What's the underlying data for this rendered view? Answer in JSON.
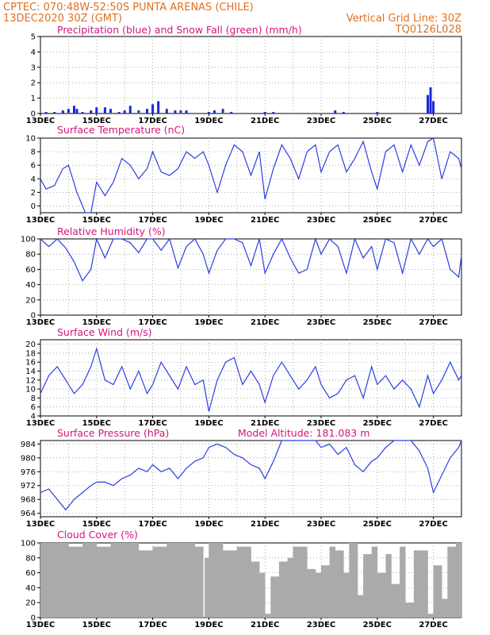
{
  "header": {
    "station_line": "CPTEC:   070:48W-52:50S   PUNTA ARENAS (CHILE)",
    "run_time": "13DEC2020 30Z (GMT)",
    "grid_note": "Vertical Grid Line: 30Z",
    "model": "TQ0126L028"
  },
  "x_axis": {
    "date_labels": [
      "13DEC",
      "15DEC",
      "17DEC",
      "19DEC",
      "21DEC",
      "23DEC",
      "25DEC",
      "27DEC"
    ],
    "start_day": 13,
    "end_day": 28
  },
  "colors": {
    "title": "#d4147e",
    "header": "#e07020",
    "line": "#2b3fe0",
    "precip_bar": "#1a2ad8",
    "snow": "#22aa22",
    "cloud": "#aaaaaa",
    "grid": "#999999"
  },
  "chart_data": [
    {
      "id": "precip",
      "type": "bar",
      "title": "Precipitation (blue) and Snow Fall (green) (mm/h)",
      "yticks": [
        0,
        1,
        2,
        3,
        4,
        5
      ],
      "ylim": [
        0,
        5
      ],
      "series": [
        {
          "name": "Precipitation",
          "x": [
            13.2,
            13.5,
            13.8,
            14.0,
            14.2,
            14.3,
            14.5,
            14.8,
            15.0,
            15.3,
            15.5,
            15.8,
            16.0,
            16.2,
            16.5,
            16.8,
            17.0,
            17.2,
            17.5,
            17.8,
            18.0,
            18.2,
            19.0,
            19.2,
            19.5,
            19.8,
            21.0,
            21.3,
            23.5,
            23.8,
            25.0,
            26.8,
            26.9,
            27.0
          ],
          "values": [
            0.1,
            0.1,
            0.2,
            0.3,
            0.5,
            0.3,
            0.1,
            0.2,
            0.4,
            0.4,
            0.3,
            0.1,
            0.2,
            0.5,
            0.2,
            0.3,
            0.6,
            0.8,
            0.3,
            0.2,
            0.2,
            0.2,
            0.1,
            0.2,
            0.3,
            0.1,
            0.1,
            0.1,
            0.2,
            0.1,
            0.1,
            1.2,
            1.7,
            0.8
          ]
        },
        {
          "name": "Snow Fall",
          "x": [
            14.0,
            15.5,
            16.5,
            18.0,
            19.5,
            21.5,
            22.5,
            24.5,
            26.0
          ],
          "values": [
            0.05,
            0.05,
            0.05,
            0.05,
            0.05,
            0.05,
            0.05,
            0.05,
            0.05
          ]
        }
      ]
    },
    {
      "id": "temperature",
      "type": "line",
      "title": "Surface Temperature (nC)",
      "yticks": [
        0,
        2,
        4,
        6,
        8,
        10
      ],
      "ylim": [
        -1,
        10
      ],
      "x": [
        13.0,
        13.2,
        13.5,
        13.8,
        14.0,
        14.3,
        14.6,
        14.8,
        15.0,
        15.3,
        15.6,
        15.9,
        16.2,
        16.5,
        16.8,
        17.0,
        17.3,
        17.6,
        17.9,
        18.2,
        18.5,
        18.8,
        19.0,
        19.3,
        19.6,
        19.9,
        20.2,
        20.5,
        20.8,
        21.0,
        21.3,
        21.6,
        21.9,
        22.2,
        22.5,
        22.8,
        23.0,
        23.3,
        23.6,
        23.9,
        24.2,
        24.5,
        24.8,
        25.0,
        25.3,
        25.6,
        25.9,
        26.2,
        26.5,
        26.8,
        27.0,
        27.3,
        27.6,
        27.9,
        28.0
      ],
      "values": [
        4,
        2.5,
        3,
        5.5,
        6,
        2,
        -1.5,
        -1,
        3.5,
        1.5,
        3.5,
        7,
        6,
        4,
        5.5,
        8,
        5,
        4.5,
        5.5,
        8,
        7,
        8,
        6,
        2,
        6,
        9,
        8,
        4.5,
        8,
        1,
        5.5,
        9,
        7,
        4,
        8,
        9,
        5,
        8,
        9,
        5,
        7,
        9.5,
        5,
        2.5,
        8,
        9,
        5,
        9,
        6,
        9.5,
        10,
        4,
        8,
        7,
        5.5
      ]
    },
    {
      "id": "humidity",
      "type": "line",
      "title": "Relative Humidity (%)",
      "yticks": [
        0,
        20,
        40,
        60,
        80,
        100
      ],
      "ylim": [
        0,
        100
      ],
      "x": [
        13.0,
        13.3,
        13.6,
        13.9,
        14.2,
        14.5,
        14.8,
        15.0,
        15.3,
        15.6,
        15.9,
        16.2,
        16.5,
        16.8,
        17.0,
        17.3,
        17.6,
        17.9,
        18.2,
        18.5,
        18.8,
        19.0,
        19.3,
        19.6,
        19.9,
        20.2,
        20.5,
        20.8,
        21.0,
        21.3,
        21.6,
        21.9,
        22.2,
        22.5,
        22.8,
        23.0,
        23.3,
        23.6,
        23.9,
        24.2,
        24.5,
        24.8,
        25.0,
        25.3,
        25.6,
        25.9,
        26.2,
        26.5,
        26.8,
        27.0,
        27.3,
        27.6,
        27.9,
        28.0
      ],
      "values": [
        100,
        90,
        100,
        88,
        70,
        45,
        60,
        100,
        75,
        100,
        100,
        95,
        82,
        100,
        100,
        85,
        100,
        62,
        90,
        100,
        80,
        55,
        85,
        100,
        100,
        95,
        65,
        100,
        55,
        80,
        100,
        75,
        55,
        60,
        100,
        80,
        100,
        90,
        55,
        100,
        75,
        90,
        60,
        100,
        95,
        55,
        100,
        80,
        100,
        90,
        100,
        60,
        50,
        78
      ]
    },
    {
      "id": "wind",
      "type": "line",
      "title": "Surface Wind (m/s)",
      "yticks": [
        4,
        6,
        8,
        10,
        12,
        14,
        16,
        18,
        20
      ],
      "ylim": [
        4,
        21
      ],
      "x": [
        13.0,
        13.3,
        13.6,
        13.9,
        14.2,
        14.5,
        14.8,
        15.0,
        15.3,
        15.6,
        15.9,
        16.2,
        16.5,
        16.8,
        17.0,
        17.3,
        17.6,
        17.9,
        18.2,
        18.5,
        18.8,
        19.0,
        19.3,
        19.6,
        19.9,
        20.2,
        20.5,
        20.8,
        21.0,
        21.3,
        21.6,
        21.9,
        22.2,
        22.5,
        22.8,
        23.0,
        23.3,
        23.6,
        23.9,
        24.2,
        24.5,
        24.8,
        25.0,
        25.3,
        25.6,
        25.9,
        26.2,
        26.5,
        26.8,
        27.0,
        27.3,
        27.6,
        27.9,
        28.0
      ],
      "values": [
        9,
        13,
        15,
        12,
        9,
        11,
        15,
        19,
        12,
        11,
        15,
        10,
        14,
        9,
        11,
        16,
        13,
        10,
        15,
        11,
        12,
        5,
        12,
        16,
        17,
        11,
        14,
        11,
        7,
        13,
        16,
        13,
        10,
        12,
        15,
        11,
        8,
        9,
        12,
        13,
        8,
        15,
        11,
        13,
        10,
        12,
        10,
        6,
        13,
        9,
        12,
        16,
        12,
        13
      ]
    },
    {
      "id": "pressure",
      "type": "line",
      "title": "Surface Pressure (hPa)",
      "annotation": "Model Altitude: 181.083  m",
      "yticks": [
        964,
        968,
        972,
        976,
        980,
        984
      ],
      "ylim": [
        963,
        985
      ],
      "x": [
        13.0,
        13.3,
        13.6,
        13.9,
        14.2,
        14.5,
        14.8,
        15.0,
        15.3,
        15.6,
        15.9,
        16.2,
        16.5,
        16.8,
        17.0,
        17.3,
        17.6,
        17.9,
        18.2,
        18.5,
        18.8,
        19.0,
        19.3,
        19.6,
        19.9,
        20.2,
        20.5,
        20.8,
        21.0,
        21.3,
        21.6,
        21.9,
        22.2,
        22.5,
        22.8,
        23.0,
        23.3,
        23.6,
        23.9,
        24.2,
        24.5,
        24.8,
        25.0,
        25.3,
        25.6,
        25.9,
        26.2,
        26.5,
        26.8,
        27.0,
        27.3,
        27.6,
        27.9,
        28.0
      ],
      "values": [
        970,
        971,
        968,
        965,
        968,
        970,
        972,
        973,
        973,
        972,
        974,
        975,
        977,
        976,
        978,
        976,
        977,
        974,
        977,
        979,
        980,
        983,
        984,
        983,
        981,
        980,
        978,
        977,
        974,
        979,
        985,
        986,
        988,
        987,
        985,
        983,
        984,
        981,
        983,
        978,
        976,
        979,
        980,
        983,
        985,
        987,
        986,
        982,
        977,
        970,
        975,
        980,
        983,
        985
      ]
    },
    {
      "id": "cloud",
      "type": "area",
      "title": "Cloud Cover (%)",
      "yticks": [
        0,
        20,
        40,
        60,
        80,
        100
      ],
      "ylim": [
        0,
        100
      ],
      "x": [
        13.0,
        13.5,
        14.0,
        14.5,
        15.0,
        15.5,
        16.0,
        16.5,
        17.0,
        17.5,
        18.0,
        18.5,
        18.8,
        18.85,
        19.0,
        19.5,
        20.0,
        20.5,
        20.8,
        21.0,
        21.2,
        21.5,
        21.8,
        22.0,
        22.5,
        22.8,
        23.0,
        23.3,
        23.5,
        23.8,
        24.0,
        24.3,
        24.5,
        24.8,
        25.0,
        25.3,
        25.5,
        25.8,
        26.0,
        26.3,
        26.5,
        26.8,
        27.0,
        27.3,
        27.5,
        27.8,
        28.0
      ],
      "values": [
        100,
        100,
        95,
        100,
        95,
        100,
        100,
        90,
        95,
        100,
        100,
        95,
        0,
        80,
        100,
        90,
        95,
        75,
        60,
        5,
        55,
        75,
        80,
        95,
        65,
        60,
        70,
        95,
        90,
        60,
        100,
        30,
        85,
        95,
        60,
        85,
        45,
        95,
        20,
        90,
        90,
        5,
        70,
        25,
        95,
        100,
        95
      ]
    }
  ]
}
